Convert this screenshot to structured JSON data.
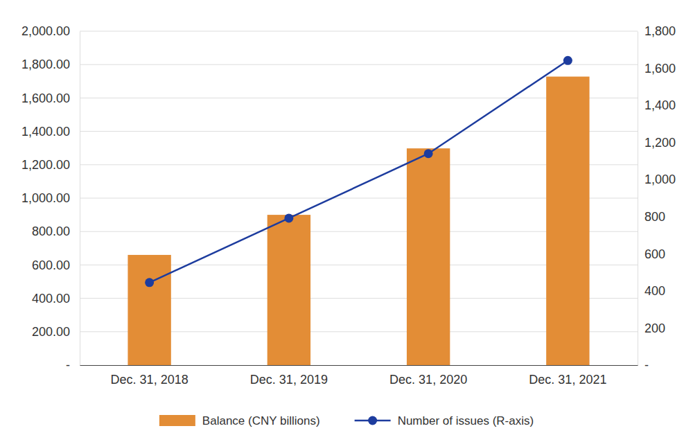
{
  "chart_data": {
    "type": "bar",
    "categories": [
      "Dec. 31, 2018",
      "Dec. 31, 2019",
      "Dec. 31, 2020",
      "Dec. 31, 2021"
    ],
    "series": [
      {
        "name": "Balance (CNY billions)",
        "type": "bar",
        "color": "#e38d36",
        "values": [
          660,
          900,
          1298,
          1728
        ]
      },
      {
        "name": "Number of issues (R-axis)",
        "type": "line",
        "axis": "y2",
        "color": "#1d3c9e",
        "marker": "circle",
        "values": [
          445,
          792,
          1140,
          1642
        ]
      }
    ],
    "ylim": [
      0,
      2000
    ],
    "yticks": [
      {
        "value": 0,
        "label": "-"
      },
      {
        "value": 200,
        "label": "200.00"
      },
      {
        "value": 400,
        "label": "400.00"
      },
      {
        "value": 600,
        "label": "600.00"
      },
      {
        "value": 800,
        "label": "800.00"
      },
      {
        "value": 1000,
        "label": "1,000.00"
      },
      {
        "value": 1200,
        "label": "1,200.00"
      },
      {
        "value": 1400,
        "label": "1,400.00"
      },
      {
        "value": 1600,
        "label": "1,600.00"
      },
      {
        "value": 1800,
        "label": "1,800.00"
      },
      {
        "value": 2000,
        "label": "2,000.00"
      }
    ],
    "y2lim": [
      0,
      1800
    ],
    "y2ticks": [
      {
        "value": 0,
        "label": "-"
      },
      200,
      400,
      600,
      800,
      {
        "value": 1000,
        "label": "1,000"
      },
      {
        "value": 1200,
        "label": "1,200"
      },
      {
        "value": 1400,
        "label": "1,400"
      },
      {
        "value": 1600,
        "label": "1,600"
      },
      {
        "value": 1800,
        "label": "1,800"
      }
    ],
    "grid": true,
    "legend": "bottom"
  }
}
